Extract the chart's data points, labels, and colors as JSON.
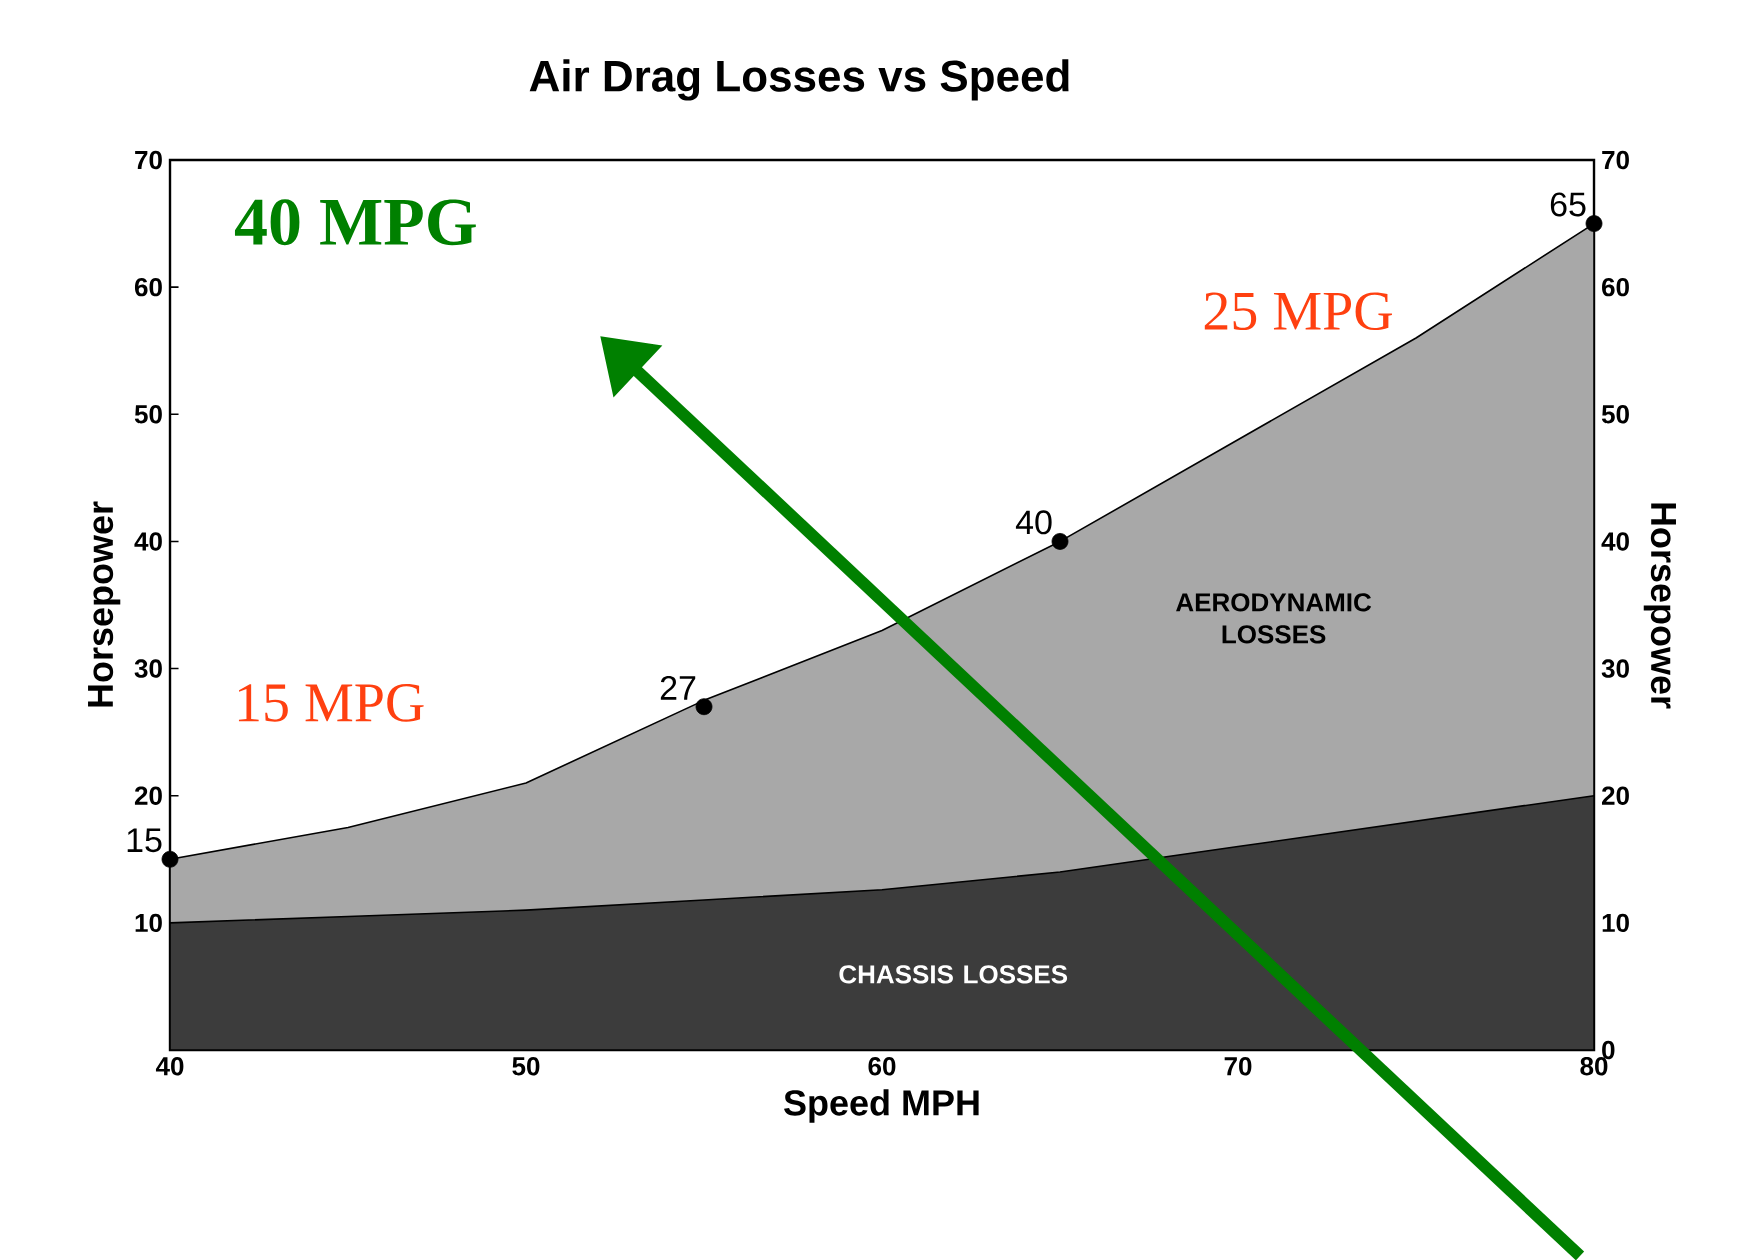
{
  "chart_data": {
    "type": "area",
    "title": "Air Drag Losses vs Speed",
    "xlabel": "Speed MPH",
    "ylabel": "Horsepower",
    "y2label": "Horsepower",
    "x": [
      40,
      45,
      50,
      55,
      60,
      65,
      70,
      75,
      80
    ],
    "series": [
      {
        "color": "#a8a8a8",
        "values": [
          15,
          17.5,
          21,
          27.5,
          33,
          40,
          48,
          56,
          65
        ]
      },
      {
        "color": "#3c3c3c",
        "values": [
          10,
          10.5,
          11,
          11.8,
          12.6,
          14,
          16,
          18,
          20
        ]
      },
      {
        "type": "scatter",
        "color": "#000000",
        "marker": "circle",
        "x": [
          40,
          55,
          65,
          80
        ],
        "values": [
          15,
          27,
          40,
          65
        ],
        "value_labels": [
          "15",
          "27",
          "40",
          "65"
        ]
      }
    ],
    "annotations": [
      "40 MPG",
      "25 MPG",
      "15 MPG",
      "AERODYNAMIC LOSSES",
      "CHASSIS LOSSES"
    ],
    "xlim": [
      40,
      80
    ],
    "xticks": [
      40,
      50,
      60,
      70,
      80
    ],
    "ylim": [
      0,
      70
    ],
    "yticks": [
      {
        "value": 0,
        "label": null
      },
      10,
      20,
      30,
      40,
      50,
      60,
      70
    ],
    "y2lim": [
      0,
      70
    ],
    "y2ticks": [
      0,
      10,
      20,
      30,
      40,
      50,
      60,
      70
    ],
    "grid": false
  }
}
